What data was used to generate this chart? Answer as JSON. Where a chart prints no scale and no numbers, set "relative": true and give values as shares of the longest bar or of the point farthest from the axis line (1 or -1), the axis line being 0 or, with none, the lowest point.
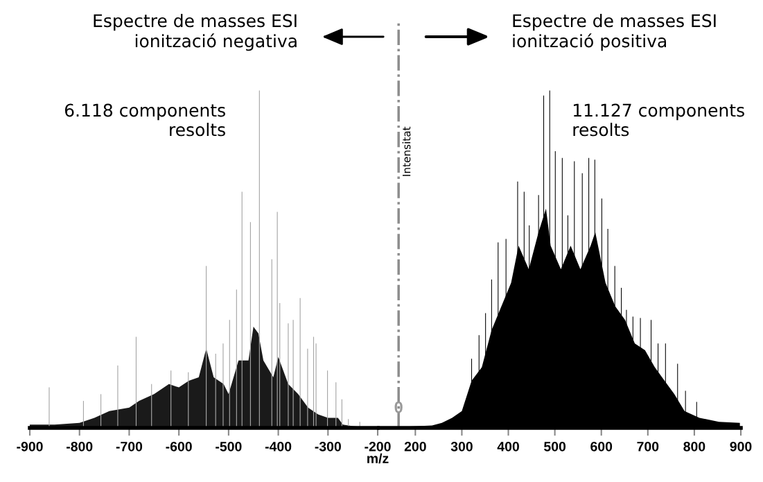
{
  "chart_data": [
    {
      "type": "bar",
      "relative": true,
      "title": "Espectre de masses ESI\nionització negativa",
      "xlim": [
        -900,
        -200
      ],
      "xticks": [
        -900,
        -800,
        -700,
        -600,
        -500,
        -400,
        -300,
        -200
      ],
      "annotations": [
        "6.118 components\nresolts"
      ],
      "series": [
        {
          "color": "#a6a6a6",
          "x": [
            -861,
            -792,
            -757,
            -723,
            -686,
            -655,
            -616,
            -581,
            -545,
            -526,
            -511,
            -498,
            -484,
            -473,
            -456,
            -438,
            -413,
            -402,
            -397,
            -380,
            -370,
            -356,
            -341,
            -329,
            -324,
            -301,
            -284,
            -272,
            -259,
            -236
          ],
          "values": [
            0.12,
            0.08,
            0.1,
            0.185,
            0.27,
            0.13,
            0.17,
            0.165,
            0.48,
            0.22,
            0.25,
            0.32,
            0.41,
            0.7,
            0.61,
            1.0,
            0.5,
            0.64,
            0.37,
            0.31,
            0.32,
            0.385,
            0.235,
            0.27,
            0.25,
            0.17,
            0.135,
            0.085,
            0.026,
            0.018
          ]
        },
        {
          "type": "area",
          "color": "#1a1a1a",
          "x": [
            -900,
            -870,
            -850,
            -800,
            -770,
            -740,
            -700,
            -680,
            -650,
            -620,
            -600,
            -580,
            -560,
            -545,
            -530,
            -510,
            -500,
            -480,
            -460,
            -450,
            -440,
            -430,
            -410,
            -400,
            -380,
            -360,
            -340,
            -320,
            -300,
            -280,
            -270,
            -250,
            -200
          ],
          "values": [
            0.01,
            0.01,
            0.01,
            0.015,
            0.03,
            0.05,
            0.06,
            0.08,
            0.1,
            0.13,
            0.12,
            0.14,
            0.15,
            0.235,
            0.15,
            0.13,
            0.1,
            0.2,
            0.2,
            0.3,
            0.28,
            0.2,
            0.15,
            0.21,
            0.13,
            0.1,
            0.06,
            0.04,
            0.03,
            0.03,
            0.01,
            0.005,
            0
          ]
        }
      ]
    },
    {
      "type": "bar",
      "relative": true,
      "title": "Espectre de masses ESI\nionització positiva",
      "xlabel": "m/z",
      "ylabel": "Intensitat",
      "xlim": [
        122,
        900
      ],
      "xticks": [
        200,
        300,
        400,
        500,
        600,
        700,
        800,
        900
      ],
      "annotations": [
        "11.127 components\nresolts",
        {
          "text": "0",
          "x": 164,
          "y": 0
        }
      ],
      "ref_lines": [
        {
          "axis": "x",
          "value": 164,
          "color": "#8c8c8c",
          "line_style": "dashdot"
        }
      ],
      "series": [
        {
          "type": "area",
          "color": "#000000",
          "x": [
            122,
            236,
            257,
            279,
            300,
            321,
            343,
            364,
            385,
            406,
            422,
            444,
            465,
            481,
            491,
            513,
            534,
            555,
            577,
            587,
            609,
            630,
            651,
            672,
            694,
            715,
            736,
            757,
            779,
            811,
            853,
            898
          ],
          "values": [
            0,
            0.007,
            0.015,
            0.03,
            0.05,
            0.14,
            0.18,
            0.29,
            0.36,
            0.43,
            0.54,
            0.47,
            0.58,
            0.65,
            0.54,
            0.47,
            0.54,
            0.47,
            0.54,
            0.58,
            0.43,
            0.36,
            0.32,
            0.25,
            0.23,
            0.18,
            0.14,
            0.1,
            0.05,
            0.03,
            0.018,
            0.015
          ]
        },
        {
          "color": "#000000",
          "x": [
            321,
            337,
            351,
            364,
            378,
            395,
            420,
            434,
            445,
            465,
            476,
            489,
            501,
            516,
            528,
            542,
            559,
            573,
            586,
            601,
            614,
            629,
            643,
            654,
            668,
            684,
            707,
            722,
            738,
            764,
            781,
            805
          ],
          "values": [
            0.205,
            0.275,
            0.34,
            0.44,
            0.55,
            0.56,
            0.73,
            0.7,
            0.6,
            0.69,
            0.985,
            1.0,
            0.82,
            0.8,
            0.63,
            0.79,
            0.755,
            0.8,
            0.795,
            0.68,
            0.59,
            0.48,
            0.415,
            0.35,
            0.33,
            0.326,
            0.32,
            0.25,
            0.25,
            0.19,
            0.11,
            0.077
          ]
        }
      ]
    }
  ]
}
